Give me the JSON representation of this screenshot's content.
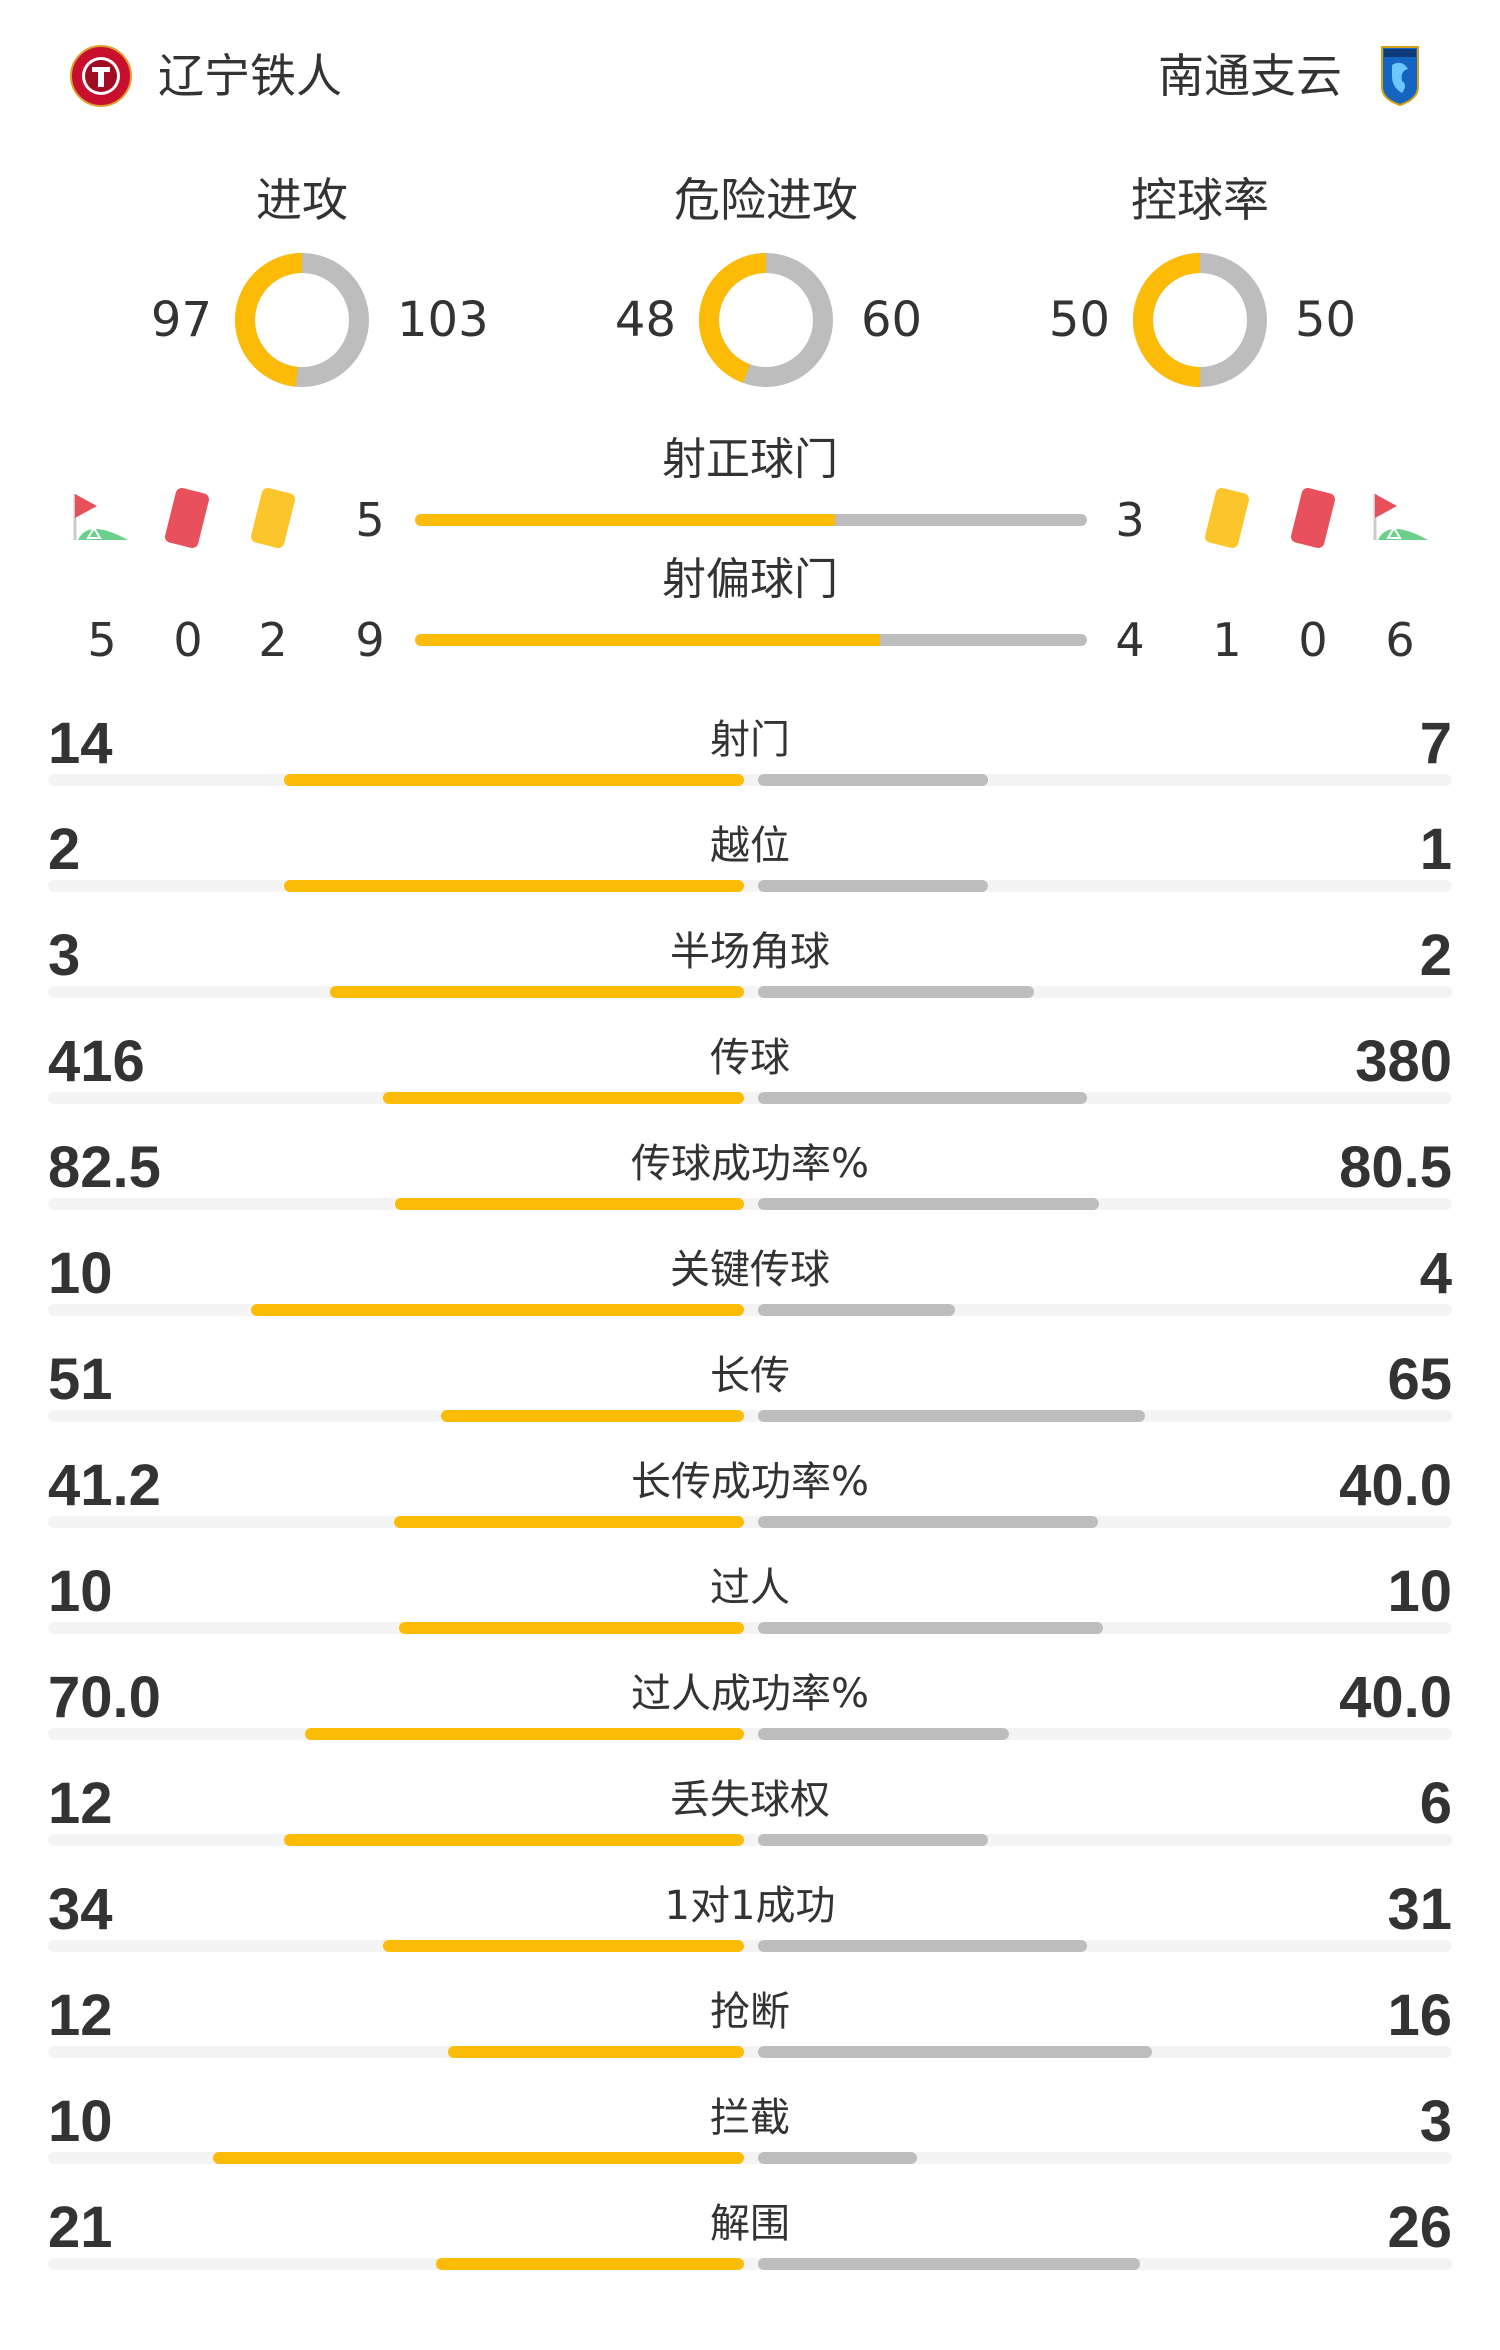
{
  "home": {
    "name": "辽宁铁人",
    "logo": "liaoning-tieren-crest"
  },
  "away": {
    "name": "南通支云",
    "logo": "nantong-zhiyun-crest"
  },
  "colors": {
    "home": "#fbbb06",
    "away": "#bdbdbd",
    "track": "#f4f4f4",
    "red_card": "#e8505b",
    "yellow_card": "#fbbb06",
    "corner_flag": "#e8505b"
  },
  "donuts": [
    {
      "label": "进攻",
      "home": "97",
      "away": "103"
    },
    {
      "label": "危险进攻",
      "home": "48",
      "away": "60"
    },
    {
      "label": "控球率",
      "home": "50",
      "away": "50"
    }
  ],
  "shots_on": {
    "label": "射正球门",
    "home": "5",
    "away": "3"
  },
  "shots_off": {
    "label": "射偏球门",
    "home": "9",
    "away": "4"
  },
  "icons": [
    "corner-flag-icon",
    "red-card-icon",
    "yellow-card-icon"
  ],
  "events": {
    "home": {
      "corners": "5",
      "red_cards": "0",
      "yellow_cards": "2"
    },
    "away": {
      "yellow_cards": "1",
      "red_cards": "0",
      "corners": "6"
    }
  },
  "stats": [
    {
      "label": "射门",
      "home": "14",
      "away": "7"
    },
    {
      "label": "越位",
      "home": "2",
      "away": "1"
    },
    {
      "label": "半场角球",
      "home": "3",
      "away": "2"
    },
    {
      "label": "传球",
      "home": "416",
      "away": "380"
    },
    {
      "label": "传球成功率%",
      "home": "82.5",
      "away": "80.5"
    },
    {
      "label": "关键传球",
      "home": "10",
      "away": "4"
    },
    {
      "label": "长传",
      "home": "51",
      "away": "65"
    },
    {
      "label": "长传成功率%",
      "home": "41.2",
      "away": "40.0"
    },
    {
      "label": "过人",
      "home": "10",
      "away": "10"
    },
    {
      "label": "过人成功率%",
      "home": "70.0",
      "away": "40.0"
    },
    {
      "label": "丢失球权",
      "home": "12",
      "away": "6"
    },
    {
      "label": "1对1成功",
      "home": "34",
      "away": "31"
    },
    {
      "label": "抢断",
      "home": "12",
      "away": "16"
    },
    {
      "label": "拦截",
      "home": "10",
      "away": "3"
    },
    {
      "label": "解围",
      "home": "21",
      "away": "26"
    }
  ]
}
